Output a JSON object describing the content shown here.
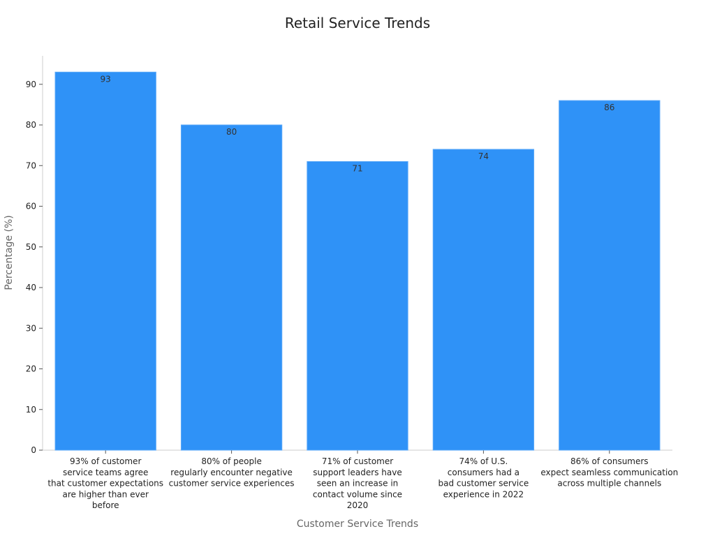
{
  "chart_data": {
    "type": "bar",
    "title": "Retail Service Trends",
    "xlabel": "Customer Service Trends",
    "ylabel": "Percentage (%)",
    "ylim": [
      0,
      97
    ],
    "yticks": [
      0,
      10,
      20,
      30,
      40,
      50,
      60,
      70,
      80,
      90
    ],
    "grid": false,
    "categories": [
      "93% of customer service teams agree that customer expectations are higher than ever before",
      "80% of people regularly encounter negative customer service experiences",
      "71% of customer support leaders have seen an increase in contact volume since 2020",
      "74% of U.S. consumers had a bad customer service experience in 2022",
      "86% of consumers expect seamless communication across multiple channels"
    ],
    "category_lines": [
      [
        "93% of customer",
        "service teams agree",
        "that customer expectations",
        "are higher than ever",
        "before"
      ],
      [
        "80% of people",
        "regularly encounter negative",
        "customer service experiences"
      ],
      [
        "71% of customer",
        "support leaders have",
        "seen an increase in",
        "contact volume since",
        "2020"
      ],
      [
        "74% of U.S.",
        "consumers had a",
        "bad customer service",
        "experience in 2022"
      ],
      [
        "86% of consumers",
        "expect seamless communication",
        "across multiple channels"
      ]
    ],
    "values": [
      93,
      80,
      71,
      74,
      86
    ],
    "colors": {
      "bar": "#2f92f7",
      "bar_edge": "#5aa8f8",
      "axis": "#cccccc"
    }
  }
}
